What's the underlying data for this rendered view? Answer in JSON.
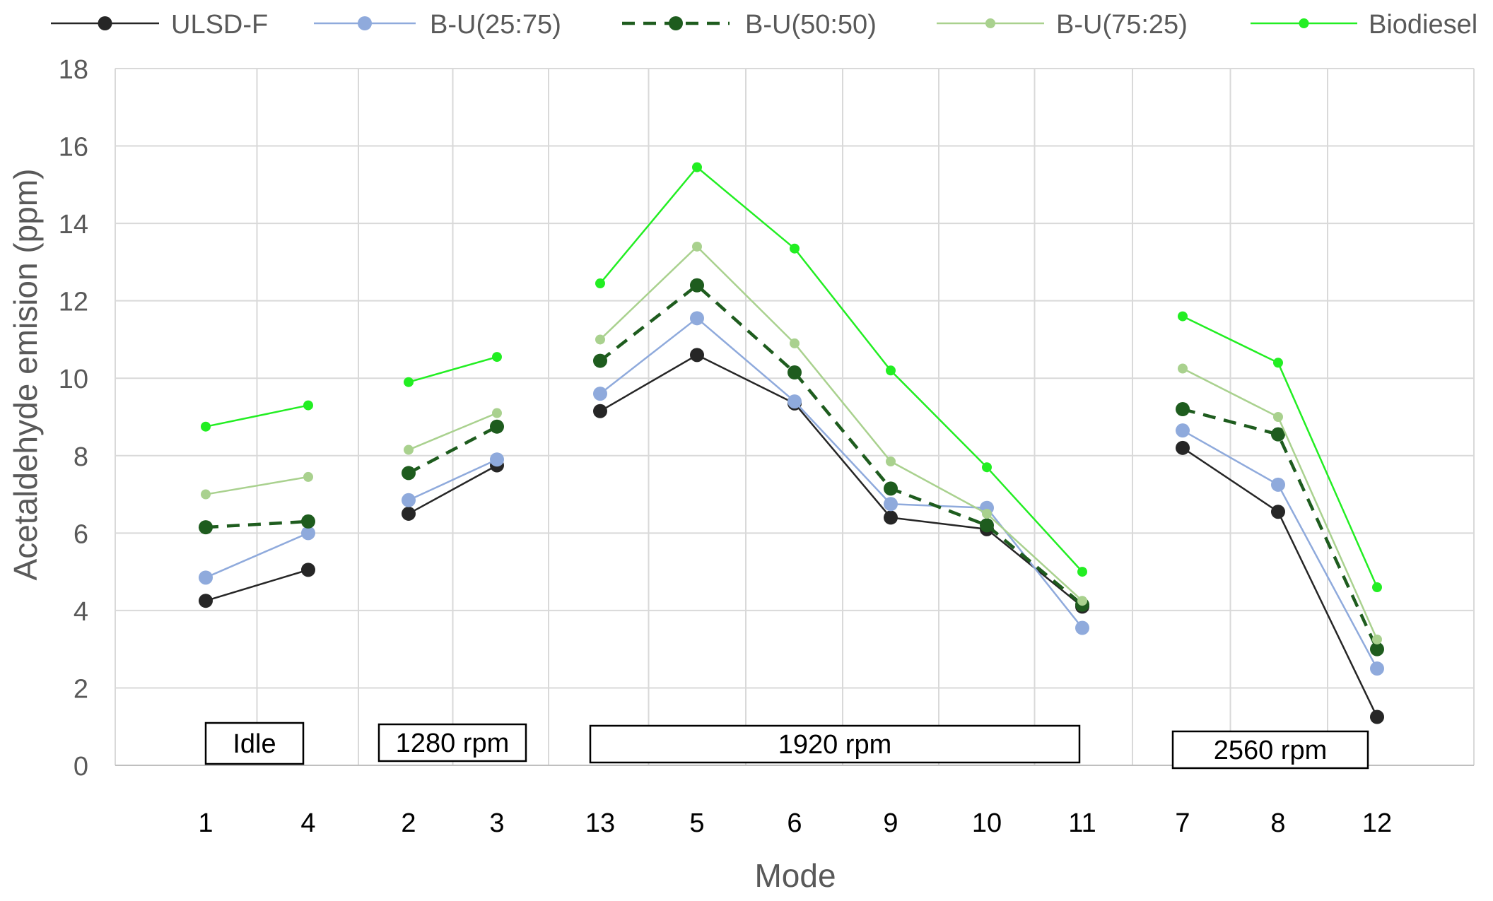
{
  "chart_data": {
    "type": "line",
    "title": "",
    "xlabel": "Mode",
    "ylabel": "Acetaldehyde emision (ppm)",
    "ylim": [
      0,
      18
    ],
    "y_ticks": [
      0,
      2,
      4,
      6,
      8,
      10,
      12,
      14,
      16,
      18
    ],
    "grid": true,
    "legend_position": "top",
    "categories": [
      "1",
      "4",
      "2",
      "3",
      "13",
      "5",
      "6",
      "9",
      "10",
      "11",
      "7",
      "8",
      "12"
    ],
    "groups": [
      {
        "label": "Idle",
        "start": 0,
        "end": 1
      },
      {
        "label": "1280 rpm",
        "start": 2,
        "end": 3
      },
      {
        "label": "1920 rpm",
        "start": 4,
        "end": 9
      },
      {
        "label": "2560 rpm",
        "start": 10,
        "end": 12
      }
    ],
    "series": [
      {
        "name": "ULSD-F",
        "color": "#262626",
        "dashed": false,
        "marker": "large",
        "values": [
          4.25,
          5.05,
          6.5,
          7.75,
          9.15,
          10.6,
          9.35,
          6.4,
          6.1,
          4.1,
          8.2,
          6.55,
          1.25
        ]
      },
      {
        "name": "B-U(25:75)",
        "color": "#8faadc",
        "dashed": false,
        "marker": "large",
        "values": [
          4.85,
          6.0,
          6.85,
          7.9,
          9.6,
          11.55,
          9.4,
          6.75,
          6.65,
          3.55,
          8.65,
          7.25,
          2.5
        ]
      },
      {
        "name": "B-U(50:50)",
        "color": "#1e5c1e",
        "dashed": true,
        "marker": "large",
        "values": [
          6.15,
          6.3,
          7.55,
          8.75,
          10.45,
          12.4,
          10.15,
          7.15,
          6.2,
          4.15,
          9.2,
          8.55,
          3.0
        ]
      },
      {
        "name": "B-U(75:25)",
        "color": "#a9d18e",
        "dashed": false,
        "marker": "small",
        "values": [
          7.0,
          7.45,
          8.15,
          9.1,
          11.0,
          13.4,
          10.9,
          7.85,
          6.5,
          4.25,
          10.25,
          9.0,
          3.25
        ]
      },
      {
        "name": "Biodiesel",
        "color": "#22ee22",
        "dashed": false,
        "marker": "small",
        "values": [
          8.75,
          9.3,
          9.9,
          10.55,
          12.45,
          15.45,
          13.35,
          10.2,
          7.7,
          5.0,
          11.6,
          10.4,
          4.6
        ]
      }
    ]
  }
}
